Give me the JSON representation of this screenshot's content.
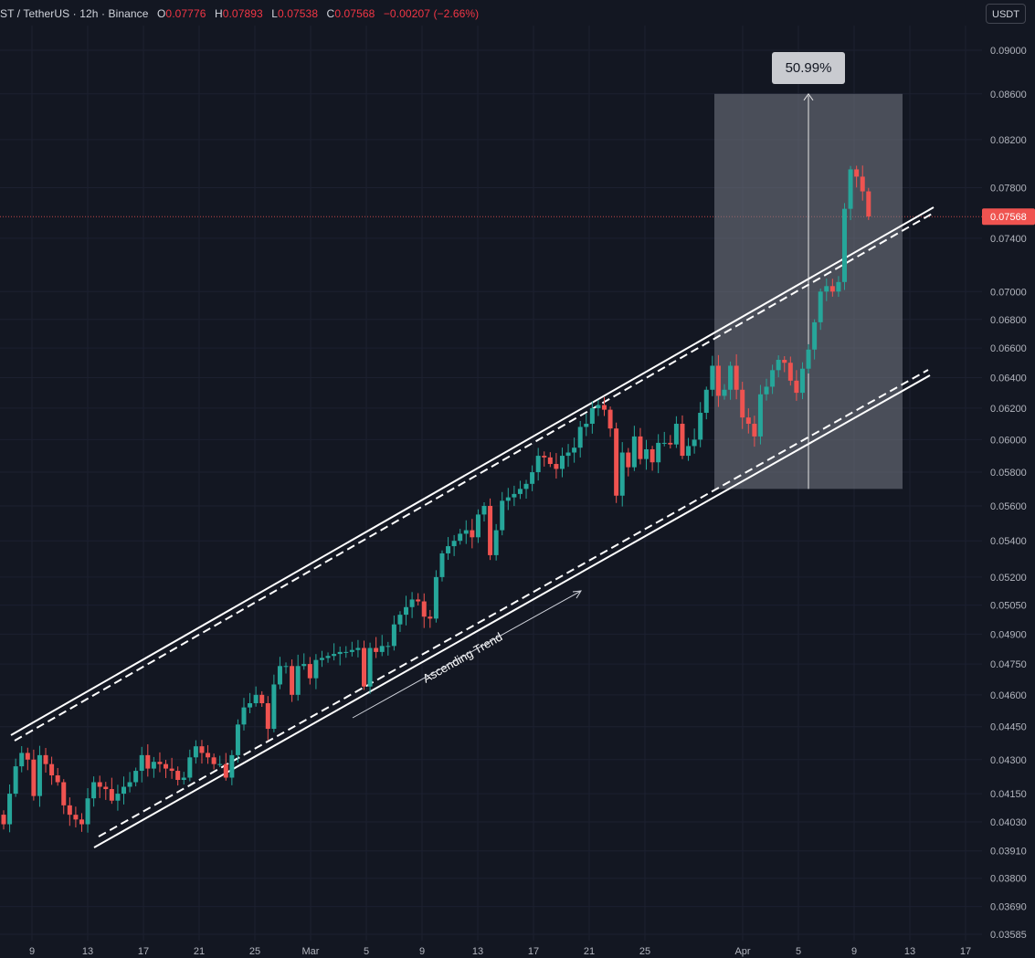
{
  "header": {
    "symbol": "ST / TetherUS · 12h · Binance",
    "o_label": "O",
    "o_value": "0.07776",
    "h_label": "H",
    "h_value": "0.07893",
    "l_label": "L",
    "l_value": "0.07538",
    "c_label": "C",
    "c_value": "0.07568",
    "change": "−0.00207 (−2.66%)"
  },
  "currency_button": "USDT",
  "measure_label": "50.99%",
  "current_price_label": "0.07568",
  "trend_label": "Ascending Trend",
  "colors": {
    "background": "#131722",
    "up": "#26a69a",
    "down": "#ef5350",
    "price_tag": "#ef5350",
    "channel": "#ffffff",
    "measure_box": "#787b86"
  },
  "chart_data": {
    "type": "candlestick",
    "interval": "12h",
    "exchange": "Binance",
    "y_scale": "log",
    "ylim": [
      0.03585,
      0.09
    ],
    "y_ticks": [
      "0.09000",
      "0.08600",
      "0.08200",
      "0.07800",
      "0.07400",
      "0.07000",
      "0.06800",
      "0.06600",
      "0.06400",
      "0.06200",
      "0.06000",
      "0.05800",
      "0.05600",
      "0.05400",
      "0.05200",
      "0.05050",
      "0.04900",
      "0.04750",
      "0.04600",
      "0.04450",
      "0.04300",
      "0.04150",
      "0.04030",
      "0.03910",
      "0.03800",
      "0.03690",
      "0.03585"
    ],
    "x_ticks": [
      "9",
      "13",
      "17",
      "21",
      "25",
      "Mar",
      "5",
      "9",
      "13",
      "17",
      "21",
      "25",
      "Apr",
      "5",
      "9",
      "13",
      "17"
    ],
    "last_price": 0.07568,
    "closes": [
      0.0402,
      0.0415,
      0.0427,
      0.0433,
      0.043,
      0.0414,
      0.0432,
      0.0428,
      0.0423,
      0.042,
      0.041,
      0.0406,
      0.0404,
      0.0402,
      0.0413,
      0.042,
      0.0418,
      0.0417,
      0.0412,
      0.0415,
      0.0418,
      0.042,
      0.0425,
      0.0432,
      0.0426,
      0.0429,
      0.0428,
      0.0426,
      0.0425,
      0.0421,
      0.0422,
      0.0431,
      0.0436,
      0.0433,
      0.0431,
      0.0428,
      0.0428,
      0.0422,
      0.0432,
      0.0446,
      0.0454,
      0.0456,
      0.046,
      0.0456,
      0.0444,
      0.0465,
      0.0474,
      0.0474,
      0.046,
      0.0474,
      0.0475,
      0.0468,
      0.0477,
      0.0478,
      0.0479,
      0.048,
      0.0481,
      0.0481,
      0.0482,
      0.0483,
      0.0464,
      0.0483,
      0.0481,
      0.0484,
      0.0484,
      0.0495,
      0.05,
      0.0504,
      0.0508,
      0.0507,
      0.0499,
      0.0498,
      0.052,
      0.0533,
      0.0537,
      0.054,
      0.0544,
      0.0546,
      0.0542,
      0.0555,
      0.056,
      0.0532,
      0.0546,
      0.0563,
      0.0565,
      0.0567,
      0.057,
      0.0573,
      0.058,
      0.059,
      0.0589,
      0.0585,
      0.0582,
      0.059,
      0.0592,
      0.0595,
      0.0608,
      0.061,
      0.062,
      0.0622,
      0.0619,
      0.0607,
      0.0566,
      0.0592,
      0.0583,
      0.0602,
      0.0588,
      0.0594,
      0.0586,
      0.0598,
      0.0598,
      0.0597,
      0.061,
      0.059,
      0.0596,
      0.06,
      0.0617,
      0.0632,
      0.0648,
      0.0628,
      0.0632,
      0.0648,
      0.0632,
      0.0614,
      0.061,
      0.0602,
      0.0629,
      0.0634,
      0.0645,
      0.0652,
      0.065,
      0.0638,
      0.063,
      0.0646,
      0.0659,
      0.0678,
      0.07,
      0.0704,
      0.07,
      0.0707,
      0.0763,
      0.0795,
      0.0789,
      0.0777,
      0.0757
    ]
  }
}
